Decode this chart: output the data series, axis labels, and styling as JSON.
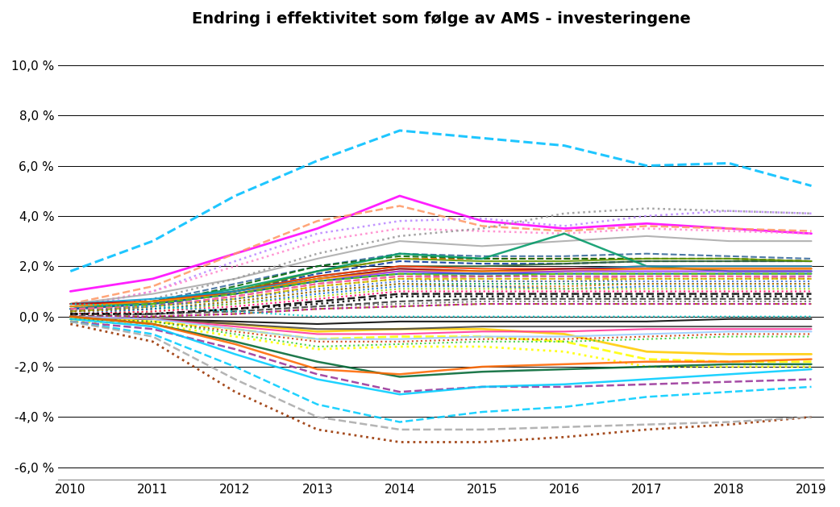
{
  "title": "Endring i effektivitet som følge av AMS - investeringene",
  "years": [
    2010,
    2011,
    2012,
    2013,
    2014,
    2015,
    2016,
    2017,
    2018,
    2019
  ],
  "ylim": [
    -6.5,
    11.0
  ],
  "yticks": [
    -6.0,
    -4.0,
    -2.0,
    0.0,
    2.0,
    4.0,
    6.0,
    8.0,
    10.0
  ],
  "series": [
    {
      "color": "#00BFFF",
      "style": "--",
      "lw": 2.2,
      "data": [
        1.8,
        3.0,
        4.8,
        6.2,
        7.4,
        7.1,
        6.8,
        6.0,
        6.1,
        5.2
      ]
    },
    {
      "color": "#FF00FF",
      "style": "-",
      "lw": 2.0,
      "data": [
        1.0,
        1.5,
        2.5,
        3.5,
        4.8,
        3.8,
        3.5,
        3.7,
        3.5,
        3.3
      ]
    },
    {
      "color": "#FF9966",
      "style": "--",
      "lw": 1.8,
      "data": [
        0.5,
        1.2,
        2.5,
        3.8,
        4.4,
        3.6,
        3.4,
        3.6,
        3.5,
        3.4
      ]
    },
    {
      "color": "#BB88FF",
      "style": ":",
      "lw": 1.8,
      "data": [
        0.3,
        1.0,
        2.2,
        3.3,
        3.8,
        3.9,
        3.6,
        4.0,
        4.2,
        4.1
      ]
    },
    {
      "color": "#FF88CC",
      "style": ":",
      "lw": 1.8,
      "data": [
        0.4,
        1.0,
        2.0,
        3.0,
        3.5,
        3.4,
        3.3,
        3.5,
        3.4,
        3.3
      ]
    },
    {
      "color": "#AAAAAA",
      "style": "-",
      "lw": 1.5,
      "data": [
        0.5,
        0.9,
        1.5,
        2.3,
        3.0,
        2.8,
        3.0,
        3.2,
        3.0,
        3.0
      ]
    },
    {
      "color": "#999999",
      "style": ":",
      "lw": 1.8,
      "data": [
        0.2,
        0.7,
        1.5,
        2.5,
        3.2,
        3.5,
        4.1,
        4.3,
        4.2,
        4.1
      ]
    },
    {
      "color": "#336699",
      "style": "--",
      "lw": 1.5,
      "data": [
        0.3,
        0.6,
        1.3,
        2.0,
        2.5,
        2.4,
        2.4,
        2.5,
        2.4,
        2.3
      ]
    },
    {
      "color": "#FF6600",
      "style": "--",
      "lw": 1.5,
      "data": [
        0.2,
        0.5,
        1.0,
        1.8,
        2.3,
        2.3,
        2.3,
        2.3,
        2.3,
        2.2
      ]
    },
    {
      "color": "#006600",
      "style": "--",
      "lw": 1.5,
      "data": [
        0.3,
        0.5,
        1.2,
        2.0,
        2.4,
        2.3,
        2.3,
        2.3,
        2.3,
        2.2
      ]
    },
    {
      "color": "#003399",
      "style": "--",
      "lw": 1.5,
      "data": [
        0.2,
        0.4,
        1.0,
        1.7,
        2.2,
        2.1,
        2.1,
        2.2,
        2.2,
        2.2
      ]
    },
    {
      "color": "#336633",
      "style": "-",
      "lw": 1.5,
      "data": [
        0.4,
        0.6,
        1.0,
        1.6,
        2.0,
        2.0,
        2.1,
        2.2,
        2.2,
        2.2
      ]
    },
    {
      "color": "#669900",
      "style": "-",
      "lw": 1.5,
      "data": [
        0.3,
        0.5,
        1.0,
        1.8,
        2.3,
        2.2,
        2.2,
        2.3,
        2.3,
        2.2
      ]
    },
    {
      "color": "#009966",
      "style": "-",
      "lw": 1.8,
      "data": [
        0.3,
        0.6,
        1.1,
        1.8,
        2.5,
        2.3,
        3.3,
        2.0,
        1.8,
        1.8
      ]
    },
    {
      "color": "#FF3300",
      "style": "-",
      "lw": 1.5,
      "data": [
        0.5,
        0.6,
        1.0,
        1.6,
        2.0,
        1.9,
        1.9,
        2.0,
        2.0,
        2.0
      ]
    },
    {
      "color": "#0099CC",
      "style": "-",
      "lw": 1.5,
      "data": [
        0.5,
        0.7,
        1.0,
        1.5,
        1.9,
        1.8,
        1.9,
        2.0,
        2.0,
        2.0
      ]
    },
    {
      "color": "#CC0000",
      "style": "-",
      "lw": 1.5,
      "data": [
        0.5,
        0.6,
        0.9,
        1.5,
        1.9,
        1.8,
        1.9,
        1.9,
        1.9,
        1.9
      ]
    },
    {
      "color": "#FF9900",
      "style": "-",
      "lw": 1.5,
      "data": [
        0.4,
        0.6,
        0.9,
        1.5,
        1.8,
        1.8,
        1.8,
        1.9,
        1.9,
        1.9
      ]
    },
    {
      "color": "#9933FF",
      "style": "-",
      "lw": 1.5,
      "data": [
        0.3,
        0.5,
        0.9,
        1.4,
        1.8,
        1.7,
        1.8,
        1.8,
        1.8,
        1.8
      ]
    },
    {
      "color": "#006699",
      "style": "-",
      "lw": 1.5,
      "data": [
        0.3,
        0.5,
        0.9,
        1.4,
        1.7,
        1.7,
        1.7,
        1.7,
        1.7,
        1.7
      ]
    },
    {
      "color": "#66CC00",
      "style": "--",
      "lw": 1.5,
      "data": [
        0.3,
        0.5,
        0.9,
        1.4,
        1.7,
        1.6,
        1.7,
        1.7,
        1.7,
        1.7
      ]
    },
    {
      "color": "#CC3399",
      "style": "--",
      "lw": 1.5,
      "data": [
        0.3,
        0.4,
        0.8,
        1.3,
        1.6,
        1.6,
        1.6,
        1.6,
        1.6,
        1.6
      ]
    },
    {
      "color": "#FF6699",
      "style": "--",
      "lw": 1.5,
      "data": [
        0.3,
        0.4,
        0.8,
        1.3,
        1.6,
        1.5,
        1.5,
        1.6,
        1.6,
        1.5
      ]
    },
    {
      "color": "#CCCC00",
      "style": "--",
      "lw": 1.5,
      "data": [
        0.2,
        0.4,
        0.7,
        1.2,
        1.5,
        1.5,
        1.5,
        1.5,
        1.5,
        1.5
      ]
    },
    {
      "color": "#CC9900",
      "style": ":",
      "lw": 1.5,
      "data": [
        0.2,
        0.4,
        0.7,
        1.2,
        1.5,
        1.4,
        1.4,
        1.5,
        1.5,
        1.5
      ]
    },
    {
      "color": "#3366CC",
      "style": ":",
      "lw": 1.5,
      "data": [
        0.2,
        0.4,
        0.7,
        1.1,
        1.4,
        1.4,
        1.4,
        1.4,
        1.4,
        1.4
      ]
    },
    {
      "color": "#009933",
      "style": ":",
      "lw": 1.5,
      "data": [
        0.2,
        0.3,
        0.6,
        1.0,
        1.3,
        1.3,
        1.3,
        1.3,
        1.3,
        1.3
      ]
    },
    {
      "color": "#CC6600",
      "style": ":",
      "lw": 1.5,
      "data": [
        0.2,
        0.3,
        0.6,
        1.0,
        1.3,
        1.2,
        1.2,
        1.3,
        1.3,
        1.3
      ]
    },
    {
      "color": "#0066CC",
      "style": ":",
      "lw": 1.5,
      "data": [
        0.1,
        0.3,
        0.5,
        0.9,
        1.2,
        1.2,
        1.1,
        1.2,
        1.2,
        1.2
      ]
    },
    {
      "color": "#99CC00",
      "style": ":",
      "lw": 1.5,
      "data": [
        0.1,
        0.2,
        0.5,
        0.8,
        1.1,
        1.1,
        1.1,
        1.1,
        1.1,
        1.1
      ]
    },
    {
      "color": "#FF0066",
      "style": ":",
      "lw": 1.5,
      "data": [
        0.1,
        0.2,
        0.4,
        0.7,
        1.0,
        1.0,
        1.0,
        1.0,
        1.0,
        1.0
      ]
    },
    {
      "color": "#000000",
      "style": "--",
      "lw": 1.8,
      "data": [
        0.1,
        0.1,
        0.3,
        0.6,
        0.9,
        0.9,
        0.9,
        0.9,
        0.9,
        0.9
      ]
    },
    {
      "color": "#000000",
      "style": ":",
      "lw": 1.8,
      "data": [
        0.1,
        0.1,
        0.3,
        0.5,
        0.8,
        0.8,
        0.8,
        0.8,
        0.8,
        0.8
      ]
    },
    {
      "color": "#333333",
      "style": "--",
      "lw": 1.5,
      "data": [
        0.0,
        0.1,
        0.2,
        0.4,
        0.6,
        0.7,
        0.7,
        0.7,
        0.7,
        0.7
      ]
    },
    {
      "color": "#666666",
      "style": ":",
      "lw": 1.5,
      "data": [
        0.0,
        0.1,
        0.2,
        0.4,
        0.5,
        0.6,
        0.6,
        0.6,
        0.6,
        0.6
      ]
    },
    {
      "color": "#996600",
      "style": "--",
      "lw": 1.5,
      "data": [
        0.0,
        0.0,
        0.1,
        0.3,
        0.4,
        0.5,
        0.5,
        0.5,
        0.5,
        0.5
      ]
    },
    {
      "color": "#CC00CC",
      "style": ":",
      "lw": 1.5,
      "data": [
        0.0,
        0.0,
        0.1,
        0.3,
        0.4,
        0.5,
        0.5,
        0.5,
        0.5,
        0.5
      ]
    },
    {
      "color": "#00CCCC",
      "style": ":",
      "lw": 1.5,
      "data": [
        0.5,
        0.4,
        0.2,
        0.0,
        0.0,
        0.0,
        0.0,
        0.0,
        0.0,
        0.0
      ]
    },
    {
      "color": "#FFCC00",
      "style": "-",
      "lw": 2.0,
      "data": [
        -0.1,
        -0.1,
        -0.3,
        -0.6,
        -0.5,
        -0.5,
        -0.7,
        -1.4,
        -1.5,
        -1.5
      ]
    },
    {
      "color": "#FFFF00",
      "style": "--",
      "lw": 2.0,
      "data": [
        -0.1,
        -0.2,
        -0.5,
        -0.9,
        -0.8,
        -0.8,
        -1.0,
        -1.7,
        -1.8,
        -1.8
      ]
    },
    {
      "color": "#FFFF00",
      "style": ":",
      "lw": 2.0,
      "data": [
        -0.2,
        -0.3,
        -0.8,
        -1.3,
        -1.2,
        -1.2,
        -1.4,
        -2.0,
        -2.0,
        -2.0
      ]
    },
    {
      "color": "#000000",
      "style": "-",
      "lw": 1.5,
      "data": [
        0.0,
        -0.1,
        -0.2,
        -0.3,
        -0.2,
        -0.2,
        -0.2,
        -0.2,
        -0.1,
        -0.1
      ]
    },
    {
      "color": "#444444",
      "style": "-",
      "lw": 1.5,
      "data": [
        0.0,
        -0.1,
        -0.3,
        -0.5,
        -0.5,
        -0.4,
        -0.4,
        -0.4,
        -0.4,
        -0.4
      ]
    },
    {
      "color": "#FF3399",
      "style": "-",
      "lw": 1.5,
      "data": [
        0.0,
        -0.1,
        -0.4,
        -0.7,
        -0.7,
        -0.6,
        -0.6,
        -0.5,
        -0.5,
        -0.5
      ]
    },
    {
      "color": "#99CCFF",
      "style": "-",
      "lw": 1.5,
      "data": [
        0.0,
        -0.1,
        -0.5,
        -0.9,
        -0.9,
        -0.8,
        -0.8,
        -0.7,
        -0.6,
        -0.6
      ]
    },
    {
      "color": "#CC3300",
      "style": ":",
      "lw": 1.5,
      "data": [
        -0.1,
        -0.2,
        -0.6,
        -1.0,
        -1.0,
        -0.9,
        -0.9,
        -0.8,
        -0.7,
        -0.7
      ]
    },
    {
      "color": "#33CC33",
      "style": ":",
      "lw": 1.5,
      "data": [
        -0.1,
        -0.2,
        -0.7,
        -1.2,
        -1.1,
        -1.0,
        -1.0,
        -0.9,
        -0.8,
        -0.8
      ]
    },
    {
      "color": "#006633",
      "style": "-",
      "lw": 1.8,
      "data": [
        0.0,
        -0.3,
        -1.0,
        -1.8,
        -2.4,
        -2.2,
        -2.1,
        -2.0,
        -1.9,
        -1.9
      ]
    },
    {
      "color": "#FF6600",
      "style": "-",
      "lw": 1.8,
      "data": [
        0.0,
        -0.3,
        -1.1,
        -2.1,
        -2.3,
        -2.0,
        -1.9,
        -1.8,
        -1.8,
        -1.7
      ]
    },
    {
      "color": "#993399",
      "style": "--",
      "lw": 1.8,
      "data": [
        -0.2,
        -0.5,
        -1.3,
        -2.3,
        -3.0,
        -2.8,
        -2.8,
        -2.7,
        -2.6,
        -2.5
      ]
    },
    {
      "color": "#00CCFF",
      "style": "-",
      "lw": 1.8,
      "data": [
        -0.1,
        -0.4,
        -1.5,
        -2.5,
        -3.1,
        -2.8,
        -2.7,
        -2.5,
        -2.3,
        -2.1
      ]
    },
    {
      "color": "#00CCFF",
      "style": "--",
      "lw": 1.8,
      "data": [
        -0.2,
        -0.7,
        -2.0,
        -3.5,
        -4.2,
        -3.8,
        -3.6,
        -3.2,
        -3.0,
        -2.8
      ]
    },
    {
      "color": "#993300",
      "style": ":",
      "lw": 2.0,
      "data": [
        -0.3,
        -1.0,
        -3.0,
        -4.5,
        -5.0,
        -5.0,
        -4.8,
        -4.5,
        -4.3,
        -4.0
      ]
    },
    {
      "color": "#AAAAAA",
      "style": "--",
      "lw": 1.8,
      "data": [
        -0.2,
        -0.8,
        -2.5,
        -4.0,
        -4.5,
        -4.5,
        -4.4,
        -4.3,
        -4.2,
        -4.0
      ]
    }
  ]
}
